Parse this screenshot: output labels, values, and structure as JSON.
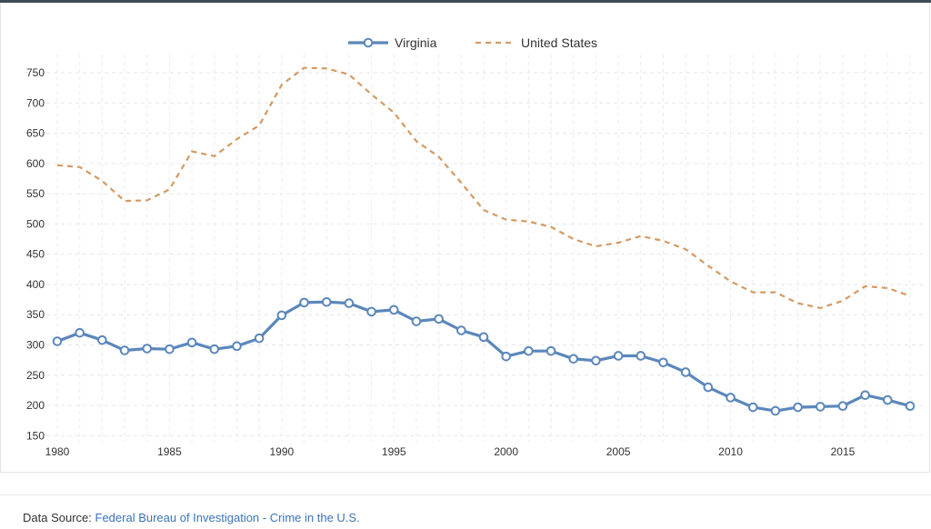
{
  "chart_data": {
    "type": "line",
    "x": [
      1980,
      1981,
      1982,
      1983,
      1984,
      1985,
      1986,
      1987,
      1988,
      1989,
      1990,
      1991,
      1992,
      1993,
      1994,
      1995,
      1996,
      1997,
      1998,
      1999,
      2000,
      2001,
      2002,
      2003,
      2004,
      2005,
      2006,
      2007,
      2008,
      2009,
      2010,
      2011,
      2012,
      2013,
      2014,
      2015,
      2016,
      2017,
      2018
    ],
    "x_ticks": [
      "1980",
      "1985",
      "1990",
      "1995",
      "2000",
      "2005",
      "2010",
      "2015"
    ],
    "y_ticks": [
      "150",
      "200",
      "250",
      "300",
      "350",
      "400",
      "450",
      "500",
      "550",
      "600",
      "650",
      "700",
      "750"
    ],
    "xlim": [
      1980,
      2018
    ],
    "ylim": [
      140,
      780
    ],
    "grid": true,
    "legend_position": "top-center",
    "series": [
      {
        "name": "Virginia",
        "color": "#5b87bb",
        "style": "solid-with-markers",
        "values": [
          306,
          320,
          308,
          291,
          294,
          293,
          304,
          293,
          298,
          311,
          349,
          370,
          371,
          369,
          355,
          358,
          339,
          343,
          324,
          313,
          281,
          290,
          290,
          277,
          274,
          282,
          282,
          271,
          255,
          230,
          213,
          197,
          191,
          197,
          198,
          199,
          217,
          209,
          199
        ]
      },
      {
        "name": "United States",
        "color": "#d49a62",
        "style": "dashed",
        "values": [
          597,
          594,
          571,
          538,
          539,
          557,
          620,
          612,
          640,
          663,
          730,
          758,
          757,
          747,
          714,
          684,
          637,
          611,
          568,
          523,
          507,
          504,
          495,
          475,
          463,
          469,
          480,
          472,
          458,
          431,
          405,
          387,
          387,
          369,
          361,
          373,
          397,
          394,
          381
        ]
      }
    ]
  },
  "footer": {
    "label": "Data Source: ",
    "link_text": "Federal Bureau of Investigation - Crime in the U.S."
  }
}
